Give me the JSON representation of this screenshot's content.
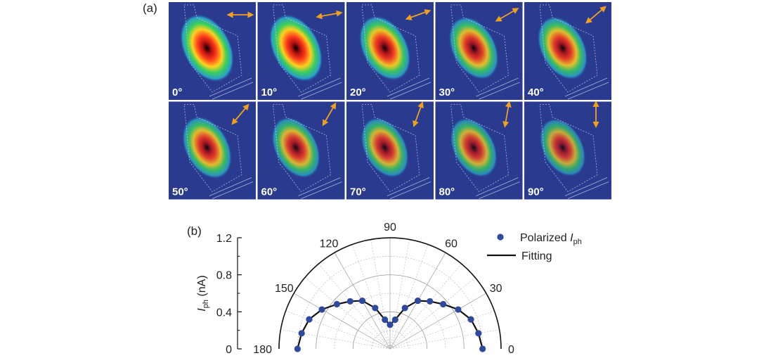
{
  "figure": {
    "panel_a_label": "(a)",
    "panel_b_label": "(b)"
  },
  "maps": [
    {
      "label": "0°",
      "angle": 0,
      "intensity": 1.0
    },
    {
      "label": "10°",
      "angle": 10,
      "intensity": 0.97
    },
    {
      "label": "20°",
      "angle": 20,
      "intensity": 0.82
    },
    {
      "label": "30°",
      "angle": 30,
      "intensity": 0.7
    },
    {
      "label": "40°",
      "angle": 40,
      "intensity": 0.72
    },
    {
      "label": "50°",
      "angle": 50,
      "intensity": 0.68
    },
    {
      "label": "60°",
      "angle": 60,
      "intensity": 0.6
    },
    {
      "label": "70°",
      "angle": 70,
      "intensity": 0.55
    },
    {
      "label": "80°",
      "angle": 80,
      "intensity": 0.5
    },
    {
      "label": "90°",
      "angle": 90,
      "intensity": 0.42
    }
  ],
  "colors": {
    "map_background": "#2a3b8f",
    "arrow": "#f0a020",
    "marker": "#2e4a9e",
    "fit_line": "#111111"
  },
  "chart_data": {
    "type": "scatter",
    "coordinate_system": "polar",
    "theta_unit": "degree",
    "ylabel_main": "I",
    "ylabel_sub": "ph",
    "ylabel_unit": " (nA)",
    "rlim": [
      0,
      1.2
    ],
    "r_ticks": [
      "0",
      "0.4",
      "0.8",
      "1.2"
    ],
    "theta_ticks": [
      "0",
      "30",
      "60",
      "90",
      "120",
      "150",
      "180"
    ],
    "theta_tick_values": [
      0,
      30,
      60,
      90,
      120,
      150,
      180
    ],
    "legend_position": "top-right",
    "series": [
      {
        "name": "Polarized I_ph",
        "legend_main": "Polarized ",
        "legend_ital": "I",
        "legend_sub": "ph",
        "kind": "markers",
        "theta": [
          0,
          10,
          20,
          30,
          40,
          50,
          60,
          70,
          80,
          90,
          100,
          110,
          120,
          130,
          140,
          150,
          160,
          170,
          180
        ],
        "r": [
          1.0,
          0.97,
          0.93,
          0.85,
          0.75,
          0.67,
          0.6,
          0.47,
          0.32,
          0.26,
          0.32,
          0.47,
          0.6,
          0.67,
          0.75,
          0.85,
          0.93,
          0.97,
          1.0
        ]
      },
      {
        "name": "Fitting",
        "legend_main": "Fitting",
        "kind": "line",
        "theta": [
          0,
          10,
          20,
          30,
          40,
          50,
          60,
          70,
          80,
          90,
          100,
          110,
          120,
          130,
          140,
          150,
          160,
          170,
          180
        ],
        "r": [
          1.0,
          0.97,
          0.93,
          0.85,
          0.75,
          0.67,
          0.6,
          0.47,
          0.32,
          0.26,
          0.32,
          0.47,
          0.6,
          0.67,
          0.75,
          0.85,
          0.93,
          0.97,
          1.0
        ]
      }
    ]
  }
}
